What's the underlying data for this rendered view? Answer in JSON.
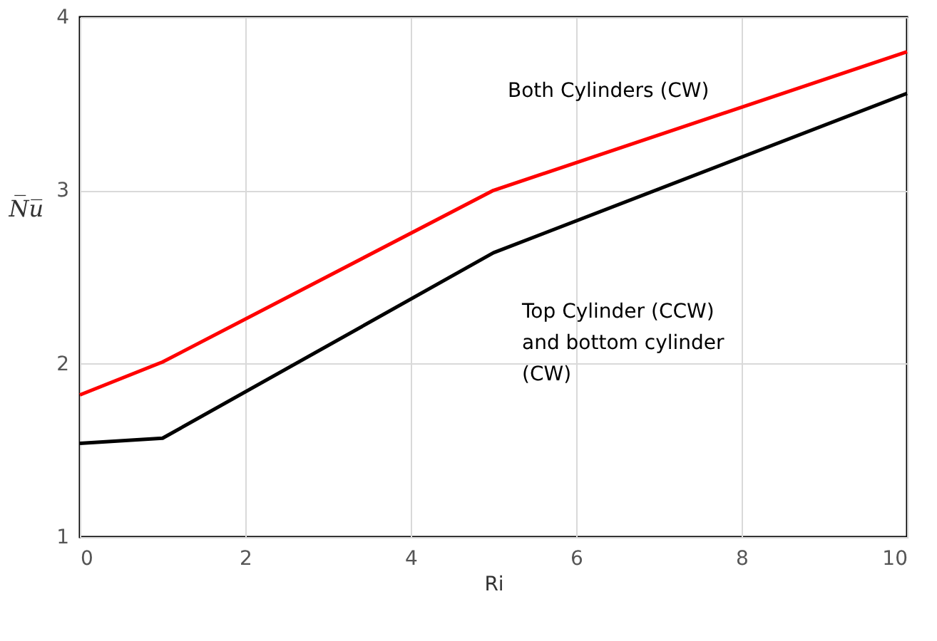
{
  "chart_data": {
    "type": "line",
    "xlabel": "Ri",
    "ylabel": "N̅u̅",
    "x": [
      0,
      1,
      5,
      10
    ],
    "series": [
      {
        "name": "Both Cylinders (CW)",
        "color": "#ff0000",
        "values": [
          1.82,
          2.01,
          3.0,
          3.8
        ]
      },
      {
        "name": "Top Cylinder (CCW)\nand bottom cylinder\n(CW)",
        "color": "#000000",
        "values": [
          1.54,
          1.57,
          2.64,
          3.56
        ]
      }
    ],
    "xlim": [
      0,
      10
    ],
    "xticks": [
      0,
      2,
      4,
      6,
      8,
      10
    ],
    "ylim": [
      1,
      4
    ],
    "yticks": [
      1,
      2,
      3,
      4
    ],
    "grid": true,
    "marker": "none",
    "line_style": "solid"
  }
}
